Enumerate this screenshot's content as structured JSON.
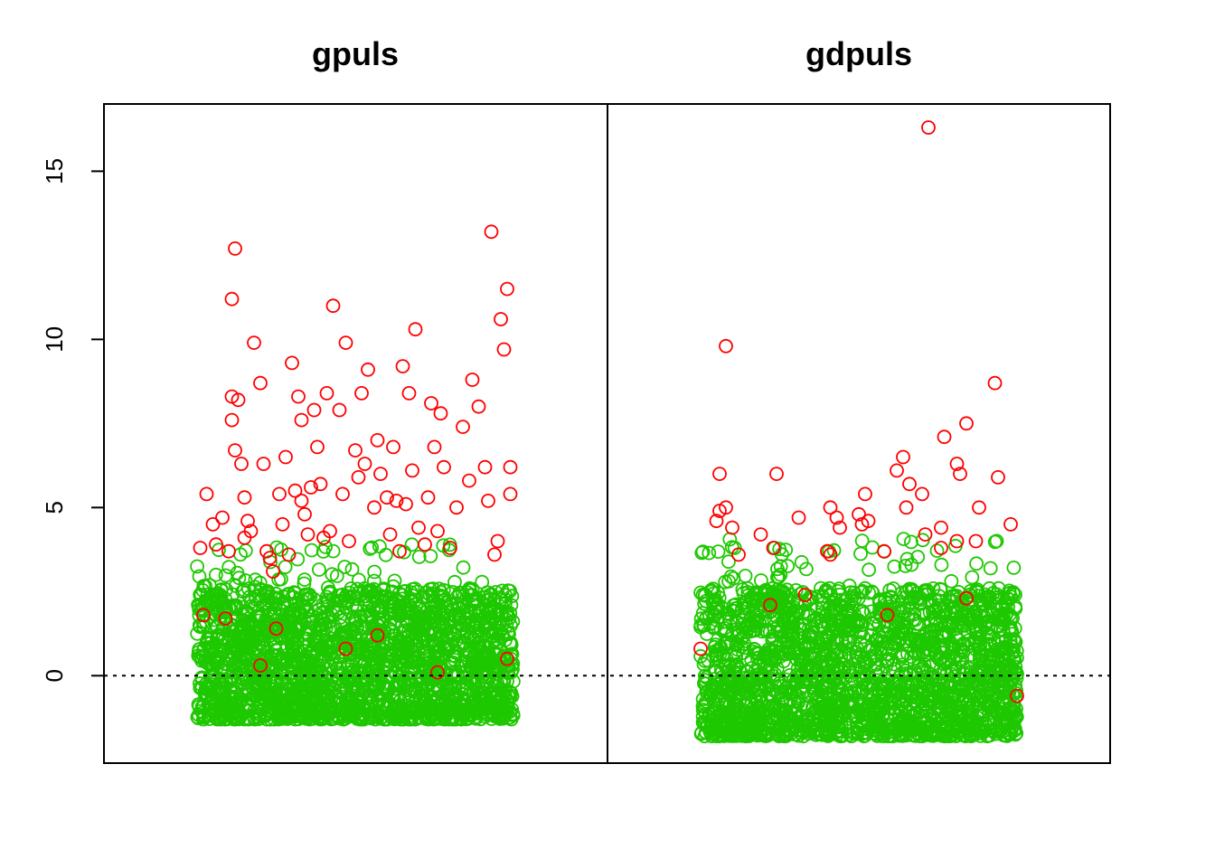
{
  "chart_data": {
    "type": "scatter",
    "panels": [
      {
        "title": "gpuls",
        "x_range": [
          0,
          1
        ],
        "ylim": [
          -2.6,
          17.0
        ],
        "n_points": 2300,
        "green_range": [
          -1.3,
          3.9
        ],
        "highlighted": [
          [
            0.01,
            3.8
          ],
          [
            0.03,
            5.4
          ],
          [
            0.05,
            4.5
          ],
          [
            0.06,
            3.9
          ],
          [
            0.08,
            4.7
          ],
          [
            0.1,
            3.7
          ],
          [
            0.11,
            8.3
          ],
          [
            0.11,
            7.6
          ],
          [
            0.11,
            11.2
          ],
          [
            0.12,
            6.7
          ],
          [
            0.12,
            12.7
          ],
          [
            0.13,
            8.2
          ],
          [
            0.14,
            6.3
          ],
          [
            0.15,
            5.3
          ],
          [
            0.15,
            4.1
          ],
          [
            0.16,
            4.6
          ],
          [
            0.17,
            4.3
          ],
          [
            0.18,
            9.9
          ],
          [
            0.2,
            8.7
          ],
          [
            0.21,
            6.3
          ],
          [
            0.22,
            3.7
          ],
          [
            0.23,
            3.5
          ],
          [
            0.24,
            3.1
          ],
          [
            0.26,
            5.4
          ],
          [
            0.27,
            4.5
          ],
          [
            0.28,
            6.5
          ],
          [
            0.29,
            3.6
          ],
          [
            0.3,
            9.3
          ],
          [
            0.31,
            5.5
          ],
          [
            0.32,
            8.3
          ],
          [
            0.33,
            5.2
          ],
          [
            0.33,
            7.6
          ],
          [
            0.34,
            4.8
          ],
          [
            0.35,
            4.2
          ],
          [
            0.36,
            5.6
          ],
          [
            0.37,
            7.9
          ],
          [
            0.38,
            6.8
          ],
          [
            0.39,
            5.7
          ],
          [
            0.4,
            4.1
          ],
          [
            0.41,
            8.4
          ],
          [
            0.42,
            4.3
          ],
          [
            0.43,
            11.0
          ],
          [
            0.45,
            7.9
          ],
          [
            0.46,
            5.4
          ],
          [
            0.47,
            9.9
          ],
          [
            0.48,
            4.0
          ],
          [
            0.5,
            6.7
          ],
          [
            0.51,
            5.9
          ],
          [
            0.52,
            8.4
          ],
          [
            0.53,
            6.3
          ],
          [
            0.54,
            9.1
          ],
          [
            0.56,
            5.0
          ],
          [
            0.57,
            7.0
          ],
          [
            0.58,
            6.0
          ],
          [
            0.6,
            5.3
          ],
          [
            0.61,
            4.2
          ],
          [
            0.62,
            6.8
          ],
          [
            0.63,
            5.2
          ],
          [
            0.64,
            3.7
          ],
          [
            0.65,
            9.2
          ],
          [
            0.66,
            5.1
          ],
          [
            0.67,
            8.4
          ],
          [
            0.68,
            6.1
          ],
          [
            0.69,
            10.3
          ],
          [
            0.7,
            4.4
          ],
          [
            0.72,
            3.9
          ],
          [
            0.73,
            5.3
          ],
          [
            0.74,
            8.1
          ],
          [
            0.75,
            6.8
          ],
          [
            0.76,
            4.3
          ],
          [
            0.77,
            7.8
          ],
          [
            0.78,
            6.2
          ],
          [
            0.8,
            3.8
          ],
          [
            0.82,
            5.0
          ],
          [
            0.84,
            7.4
          ],
          [
            0.86,
            5.8
          ],
          [
            0.87,
            8.8
          ],
          [
            0.89,
            8.0
          ],
          [
            0.91,
            6.2
          ],
          [
            0.92,
            5.2
          ],
          [
            0.93,
            13.2
          ],
          [
            0.94,
            3.6
          ],
          [
            0.95,
            4.0
          ],
          [
            0.96,
            10.6
          ],
          [
            0.97,
            9.7
          ],
          [
            0.98,
            11.5
          ],
          [
            0.99,
            6.2
          ],
          [
            0.99,
            5.4
          ],
          [
            0.02,
            1.8
          ],
          [
            0.09,
            1.7
          ],
          [
            0.2,
            0.3
          ],
          [
            0.25,
            1.4
          ],
          [
            0.47,
            0.8
          ],
          [
            0.57,
            1.2
          ],
          [
            0.76,
            0.1
          ],
          [
            0.98,
            0.5
          ]
        ]
      },
      {
        "title": "gdpuls",
        "x_range": [
          0,
          1
        ],
        "ylim": [
          -2.6,
          17.0
        ],
        "n_points": 2300,
        "green_range": [
          -1.8,
          4.1
        ],
        "highlighted": [
          [
            0.05,
            4.6
          ],
          [
            0.06,
            4.9
          ],
          [
            0.06,
            6.0
          ],
          [
            0.08,
            5.0
          ],
          [
            0.08,
            9.8
          ],
          [
            0.1,
            4.4
          ],
          [
            0.12,
            3.6
          ],
          [
            0.19,
            4.2
          ],
          [
            0.23,
            3.8
          ],
          [
            0.24,
            6.0
          ],
          [
            0.31,
            4.7
          ],
          [
            0.4,
            3.7
          ],
          [
            0.41,
            3.6
          ],
          [
            0.41,
            5.0
          ],
          [
            0.43,
            4.7
          ],
          [
            0.44,
            4.4
          ],
          [
            0.5,
            4.8
          ],
          [
            0.51,
            4.5
          ],
          [
            0.52,
            5.4
          ],
          [
            0.53,
            4.6
          ],
          [
            0.58,
            3.7
          ],
          [
            0.62,
            6.1
          ],
          [
            0.64,
            6.5
          ],
          [
            0.65,
            5.0
          ],
          [
            0.66,
            5.7
          ],
          [
            0.7,
            5.4
          ],
          [
            0.71,
            4.2
          ],
          [
            0.72,
            16.3
          ],
          [
            0.76,
            3.8
          ],
          [
            0.76,
            4.4
          ],
          [
            0.77,
            7.1
          ],
          [
            0.81,
            6.3
          ],
          [
            0.81,
            4.0
          ],
          [
            0.82,
            6.0
          ],
          [
            0.84,
            7.5
          ],
          [
            0.87,
            4.0
          ],
          [
            0.88,
            5.0
          ],
          [
            0.93,
            8.7
          ],
          [
            0.94,
            5.9
          ],
          [
            0.98,
            4.5
          ],
          [
            0.0,
            0.8
          ],
          [
            0.22,
            2.1
          ],
          [
            0.33,
            2.4
          ],
          [
            0.59,
            1.8
          ],
          [
            0.84,
            2.3
          ],
          [
            1.0,
            -0.6
          ]
        ]
      }
    ],
    "y_ticks": [
      "0",
      "5",
      "10",
      "15"
    ],
    "y_tick_values": [
      0,
      5,
      10,
      15
    ],
    "reference_line": 0,
    "colors": {
      "base": "#1ec800",
      "highlight": "#ff0000",
      "axis": "#000000"
    }
  }
}
